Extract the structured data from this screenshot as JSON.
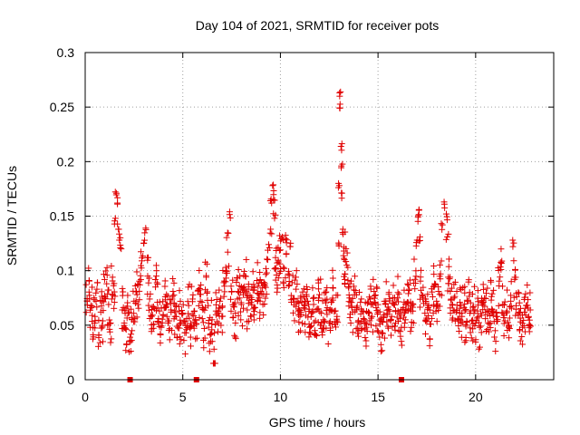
{
  "chart_data": {
    "type": "scatter",
    "title": "Day 104 of 2021, SRMTID for receiver pots",
    "xlabel": "GPS time / hours",
    "ylabel": "SRMTID / TECUs",
    "xlim": [
      0,
      24
    ],
    "ylim": [
      0,
      0.3
    ],
    "xticks": [
      0,
      5,
      10,
      15,
      20
    ],
    "xtick_labels": [
      "0",
      "5",
      "10",
      "15",
      "20"
    ],
    "yticks": [
      0,
      0.05,
      0.1,
      0.15,
      0.2,
      0.25,
      0.3
    ],
    "ytick_labels": [
      "0",
      "0.05",
      "0.1",
      "0.15",
      "0.2",
      "0.25",
      "0.3"
    ],
    "grid": true,
    "marker": "plus",
    "color": "#e00000",
    "series": [
      {
        "name": "SRMTID",
        "x": [
          0.1,
          0.2,
          0.3,
          0.4,
          0.5,
          0.6,
          0.7,
          0.8,
          0.9,
          1.0,
          1.1,
          1.2,
          1.3,
          1.4,
          1.5,
          1.55,
          1.6,
          1.65,
          1.7,
          1.75,
          1.8,
          1.9,
          2.0,
          2.1,
          2.2,
          2.3,
          2.4,
          2.5,
          2.6,
          2.7,
          2.8,
          2.9,
          3.0,
          3.1,
          3.2,
          3.3,
          3.4,
          3.5,
          3.6,
          3.7,
          3.8,
          3.9,
          4.0,
          4.1,
          4.2,
          4.3,
          4.4,
          4.5,
          4.6,
          4.7,
          4.8,
          4.9,
          5.0,
          5.1,
          5.2,
          5.3,
          5.4,
          5.5,
          5.6,
          5.7,
          5.8,
          5.9,
          6.0,
          6.1,
          6.2,
          6.3,
          6.4,
          6.5,
          6.6,
          6.7,
          6.8,
          6.9,
          7.0,
          7.1,
          7.2,
          7.3,
          7.4,
          7.5,
          7.6,
          7.7,
          7.8,
          7.9,
          8.0,
          8.1,
          8.2,
          8.3,
          8.4,
          8.5,
          8.6,
          8.7,
          8.8,
          8.9,
          9.0,
          9.1,
          9.2,
          9.3,
          9.4,
          9.5,
          9.55,
          9.6,
          9.65,
          9.7,
          9.75,
          9.8,
          9.9,
          10.0,
          10.1,
          10.2,
          10.3,
          10.4,
          10.5,
          10.6,
          10.7,
          10.8,
          10.9,
          11.0,
          11.1,
          11.2,
          11.3,
          11.4,
          11.5,
          11.6,
          11.7,
          11.8,
          11.9,
          12.0,
          12.1,
          12.2,
          12.3,
          12.4,
          12.5,
          12.6,
          12.7,
          12.8,
          12.9,
          13.0,
          13.02,
          13.05,
          13.08,
          13.1,
          13.12,
          13.15,
          13.2,
          13.25,
          13.3,
          13.4,
          13.5,
          13.6,
          13.7,
          13.8,
          13.9,
          14.0,
          14.1,
          14.2,
          14.3,
          14.4,
          14.5,
          14.6,
          14.7,
          14.8,
          14.9,
          15.0,
          15.1,
          15.2,
          15.3,
          15.4,
          15.5,
          15.6,
          15.7,
          15.8,
          15.9,
          16.0,
          16.1,
          16.2,
          16.3,
          16.4,
          16.5,
          16.6,
          16.7,
          16.8,
          16.9,
          17.0,
          17.05,
          17.1,
          17.15,
          17.2,
          17.3,
          17.4,
          17.5,
          17.6,
          17.7,
          17.8,
          17.9,
          18.0,
          18.1,
          18.2,
          18.3,
          18.4,
          18.5,
          18.55,
          18.6,
          18.7,
          18.8,
          18.9,
          19.0,
          19.1,
          19.2,
          19.3,
          19.4,
          19.5,
          19.6,
          19.7,
          19.8,
          19.9,
          20.0,
          20.1,
          20.2,
          20.3,
          20.4,
          20.5,
          20.6,
          20.7,
          20.8,
          20.9,
          21.0,
          21.1,
          21.2,
          21.3,
          21.4,
          21.5,
          21.6,
          21.7,
          21.8,
          21.9,
          22.0,
          22.1,
          22.2,
          22.3,
          22.4,
          22.5,
          22.6,
          22.7,
          22.8
        ],
        "y": [
          0.072,
          0.091,
          0.066,
          0.048,
          0.058,
          0.083,
          0.041,
          0.062,
          0.054,
          0.077,
          0.088,
          0.069,
          0.052,
          0.094,
          0.071,
          0.148,
          0.171,
          0.162,
          0.138,
          0.128,
          0.121,
          0.064,
          0.052,
          0.046,
          0.061,
          0.039,
          0.055,
          0.072,
          0.081,
          0.069,
          0.087,
          0.109,
          0.125,
          0.139,
          0.095,
          0.074,
          0.058,
          0.067,
          0.085,
          0.071,
          0.063,
          0.048,
          0.059,
          0.076,
          0.069,
          0.054,
          0.062,
          0.081,
          0.058,
          0.049,
          0.067,
          0.052,
          0.061,
          0.043,
          0.056,
          0.068,
          0.039,
          0.074,
          0.063,
          0.051,
          0.082,
          0.072,
          0.056,
          0.047,
          0.094,
          0.068,
          0.041,
          0.055,
          0.028,
          0.063,
          0.044,
          0.072,
          0.058,
          0.089,
          0.103,
          0.117,
          0.154,
          0.081,
          0.067,
          0.052,
          0.074,
          0.086,
          0.069,
          0.078,
          0.095,
          0.064,
          0.073,
          0.058,
          0.082,
          0.066,
          0.091,
          0.075,
          0.081,
          0.069,
          0.086,
          0.098,
          0.124,
          0.138,
          0.162,
          0.178,
          0.165,
          0.148,
          0.112,
          0.096,
          0.108,
          0.119,
          0.131,
          0.102,
          0.115,
          0.097,
          0.122,
          0.089,
          0.074,
          0.083,
          0.063,
          0.058,
          0.071,
          0.066,
          0.059,
          0.072,
          0.048,
          0.061,
          0.069,
          0.054,
          0.065,
          0.078,
          0.061,
          0.055,
          0.073,
          0.066,
          0.052,
          0.071,
          0.084,
          0.063,
          0.058,
          0.124,
          0.178,
          0.249,
          0.264,
          0.214,
          0.196,
          0.171,
          0.138,
          0.118,
          0.097,
          0.105,
          0.084,
          0.071,
          0.062,
          0.078,
          0.066,
          0.054,
          0.071,
          0.063,
          0.052,
          0.048,
          0.061,
          0.074,
          0.058,
          0.081,
          0.066,
          0.062,
          0.051,
          0.043,
          0.057,
          0.072,
          0.049,
          0.063,
          0.058,
          0.069,
          0.052,
          0.075,
          0.061,
          0.048,
          0.066,
          0.055,
          0.071,
          0.083,
          0.063,
          0.069,
          0.092,
          0.128,
          0.149,
          0.156,
          0.131,
          0.082,
          0.074,
          0.061,
          0.055,
          0.068,
          0.051,
          0.076,
          0.088,
          0.072,
          0.081,
          0.097,
          0.142,
          0.161,
          0.152,
          0.131,
          0.094,
          0.081,
          0.069,
          0.075,
          0.062,
          0.055,
          0.071,
          0.058,
          0.066,
          0.049,
          0.072,
          0.061,
          0.054,
          0.067,
          0.052,
          0.063,
          0.048,
          0.059,
          0.071,
          0.056,
          0.064,
          0.051,
          0.073,
          0.062,
          0.045,
          0.058,
          0.086,
          0.101,
          0.069,
          0.054,
          0.063,
          0.048,
          0.072,
          0.128,
          0.092,
          0.076,
          0.061,
          0.053,
          0.048,
          0.062,
          0.068,
          0.057,
          0.064
        ]
      }
    ],
    "baseline_marks_x": [
      2.3,
      5.7,
      16.2
    ]
  }
}
